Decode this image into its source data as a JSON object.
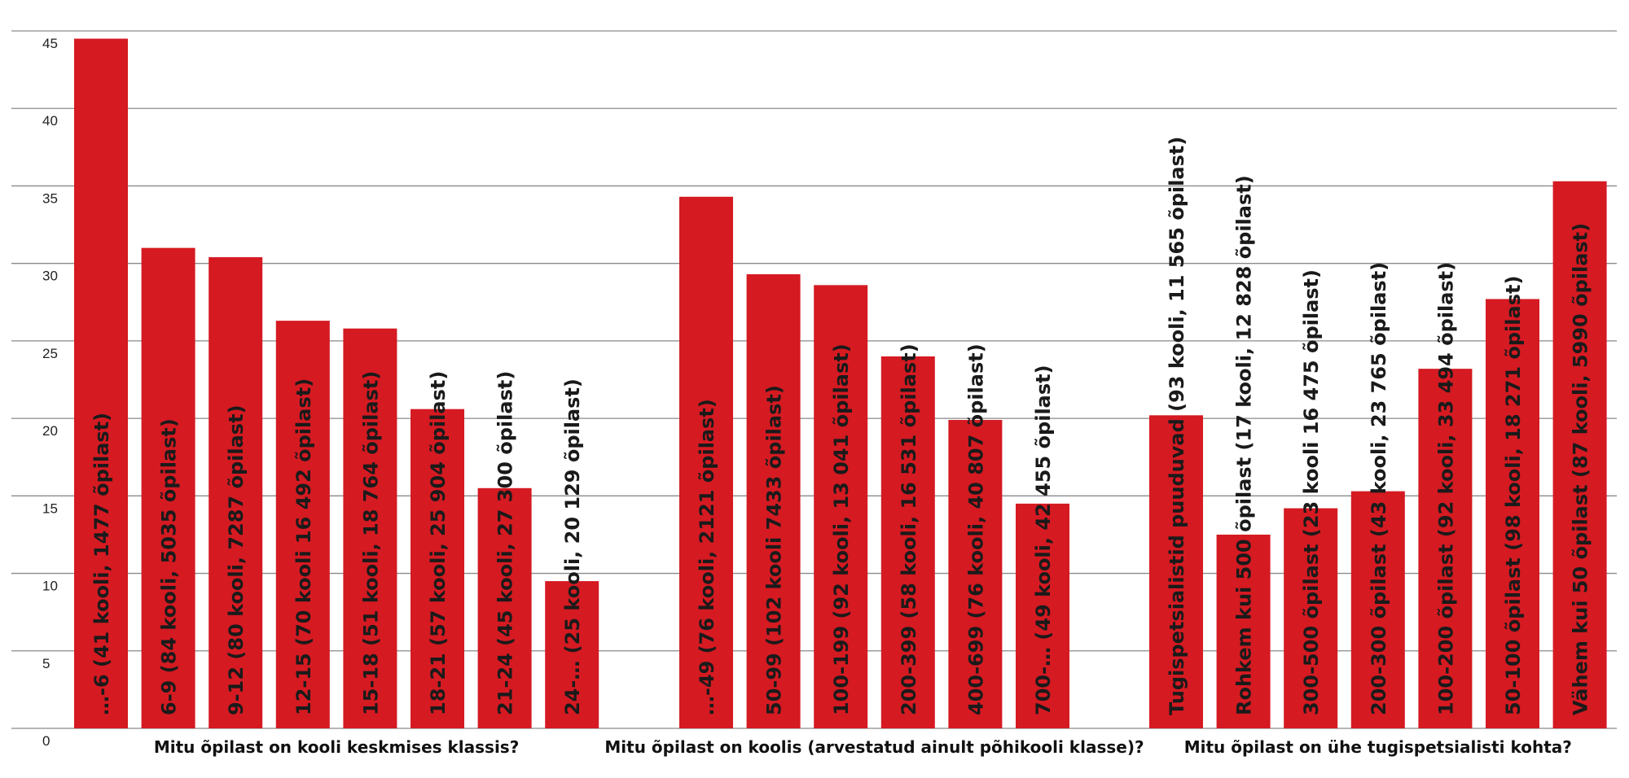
{
  "chart_data": {
    "type": "bar",
    "title": "",
    "xlabel": "",
    "ylabel": "",
    "ylim": [
      0,
      45
    ],
    "yticks": [
      0,
      5,
      10,
      15,
      20,
      25,
      30,
      35,
      40,
      45
    ],
    "grid": true,
    "colors": {
      "bar": "#d51a22",
      "grid": "#8a8a8a"
    },
    "groups": [
      {
        "label": "Mitu õpilast on kooli keskmises klassis?",
        "bars": [
          {
            "label": "…-6 (41 kooli, 1477 õpilast)",
            "value": 44.5
          },
          {
            "label": "6-9 (84 kooli, 5035 õpilast)",
            "value": 31
          },
          {
            "label": "9-12 (80 kooli, 7287 õpilast)",
            "value": 30.4
          },
          {
            "label": "12-15 (70 kooli 16 492 õpilast)",
            "value": 26.3
          },
          {
            "label": "15-18 (51 kooli, 18 764 õpilast)",
            "value": 25.8
          },
          {
            "label": "18-21 (57 kooli, 25 904 õpilast)",
            "value": 20.6
          },
          {
            "label": "21-24 (45 kooli, 27 300 õpilast)",
            "value": 15.5
          },
          {
            "label": "24-… (25 kooli, 20 129 õpilast)",
            "value": 9.5
          }
        ]
      },
      {
        "label": "Mitu õpilast on koolis (arvestatud ainult põhikooli klasse)?",
        "bars": [
          {
            "label": "…-49 (76 kooli, 2121 õpilast)",
            "value": 34.3
          },
          {
            "label": "50-99 (102 kooli 7433 õpilast)",
            "value": 29.3
          },
          {
            "label": "100-199 (92 kooli, 13 041 õpilast)",
            "value": 28.6
          },
          {
            "label": "200-399 (58 kooli, 16 531 õpilast)",
            "value": 24
          },
          {
            "label": "400-699 (76 kooli, 40 807 õpilast)",
            "value": 19.9
          },
          {
            "label": "700-… (49 kooli, 42 455 õpilast)",
            "value": 14.5
          }
        ]
      },
      {
        "label": "Mitu õpilast on ühe tugispetsialisti kohta?",
        "bars": [
          {
            "label": "Tugispetsialistid puuduvad (93 kooli, 11 565 õpilast)",
            "value": 20.2
          },
          {
            "label": "Rohkem kui 500 õpilast (17 kooli, 12 828 õpilast)",
            "value": 12.5
          },
          {
            "label": "300-500 õpilast (23 kooli 16 475 õpilast)",
            "value": 14.2
          },
          {
            "label": "200-300 õpilast (43 kooli, 23 765 õpilast)",
            "value": 15.3
          },
          {
            "label": "100-200 õpilast (92 kooli, 33 494 õpilast)",
            "value": 23.2
          },
          {
            "label": "50-100 õpilast (98 kooli, 18 271 õpilast)",
            "value": 27.7
          },
          {
            "label": "Vähem kui 50 õpilast (87 kooli, 5990 õpilast)",
            "value": 35.3
          }
        ]
      }
    ]
  }
}
